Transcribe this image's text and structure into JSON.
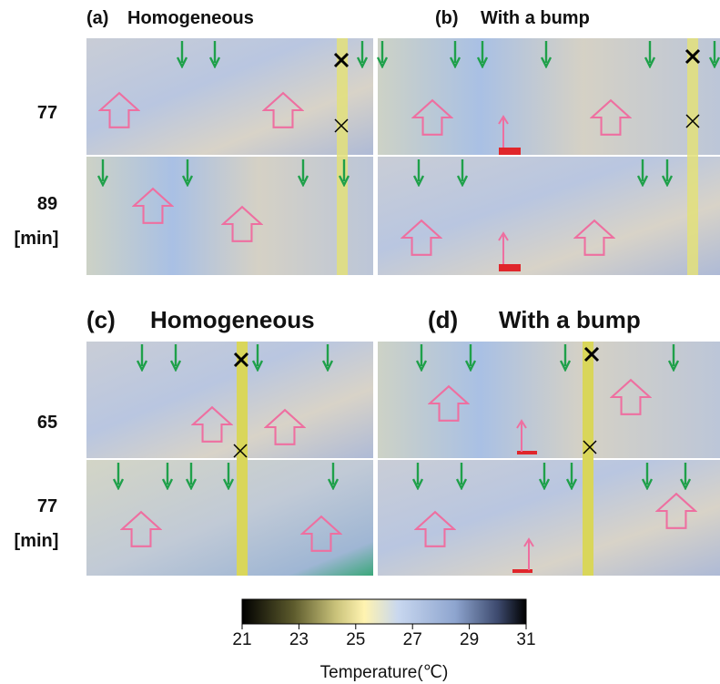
{
  "panels": [
    {
      "label": "(a)",
      "title": "Homogeneous"
    },
    {
      "label": "(b)",
      "title": "With a bump"
    },
    {
      "label": "(c)",
      "title": "Homogeneous"
    },
    {
      "label": "(d)",
      "title": "With a bump"
    }
  ],
  "rows_top": [
    "77",
    "89"
  ],
  "unit_top": "[min]",
  "rows_bottom": [
    "65",
    "77"
  ],
  "unit_bottom": "[min]",
  "colorbar": {
    "range": [
      21,
      31
    ],
    "ticks": [
      21,
      23,
      25,
      27,
      29,
      31
    ],
    "label": "Temperature(℃)"
  }
}
